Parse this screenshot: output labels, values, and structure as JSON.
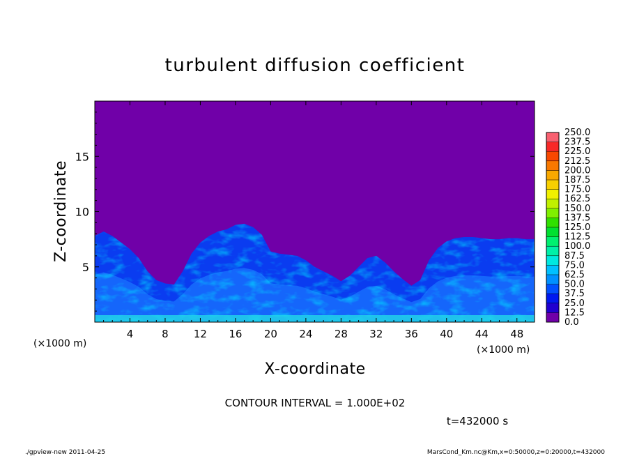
{
  "chart_data": {
    "type": "heatmap",
    "title": "turbulent diffusion coefficient",
    "xlabel": "X-coordinate",
    "ylabel": "Z-coordinate",
    "x_unit_label": "(×1000 m)",
    "y_unit_label": "(×1000 m)",
    "xlim": [
      0,
      50
    ],
    "ylim": [
      0,
      20
    ],
    "x_ticks": [
      {
        "value": 4,
        "label": "4"
      },
      {
        "value": 8,
        "label": "8"
      },
      {
        "value": 12,
        "label": "12"
      },
      {
        "value": 16,
        "label": "16"
      },
      {
        "value": 20,
        "label": "20"
      },
      {
        "value": 24,
        "label": "24"
      },
      {
        "value": 28,
        "label": "28"
      },
      {
        "value": 32,
        "label": "32"
      },
      {
        "value": 36,
        "label": "36"
      },
      {
        "value": 40,
        "label": "40"
      },
      {
        "value": 44,
        "label": "44"
      },
      {
        "value": 48,
        "label": "48"
      }
    ],
    "y_ticks": [
      {
        "value": 5,
        "label": "5"
      },
      {
        "value": 10,
        "label": "10"
      },
      {
        "value": 15,
        "label": "15"
      }
    ],
    "colorbar": {
      "levels": [
        "0.0",
        "12.5",
        "25.0",
        "37.5",
        "50.0",
        "62.5",
        "75.0",
        "87.5",
        "100.0",
        "112.5",
        "125.0",
        "137.5",
        "150.0",
        "162.5",
        "175.0",
        "187.5",
        "200.0",
        "212.5",
        "225.0",
        "237.5",
        "250.0"
      ],
      "colors": [
        "#7000a8",
        "#2000d0",
        "#0018f0",
        "#0050ff",
        "#0090ff",
        "#00c0ff",
        "#00e8e0",
        "#00f0a8",
        "#00f070",
        "#00e030",
        "#30e000",
        "#80f000",
        "#c0f000",
        "#f0f000",
        "#f8d000",
        "#f8a800",
        "#f87800",
        "#f84800",
        "#f82828",
        "#f86070"
      ]
    },
    "field_profile": {
      "x": [
        0,
        1,
        2,
        3,
        4,
        5,
        6,
        7,
        8,
        9,
        10,
        11,
        12,
        13,
        14,
        15,
        16,
        17,
        18,
        19,
        20,
        21,
        22,
        23,
        24,
        25,
        26,
        27,
        28,
        29,
        30,
        31,
        32,
        33,
        34,
        35,
        36,
        37,
        38,
        39,
        40,
        41,
        42,
        43,
        44,
        45,
        46,
        47,
        48,
        49,
        50
      ],
      "turbulent_layer_top": [
        7.8,
        8.2,
        7.8,
        7.2,
        6.6,
        5.8,
        4.6,
        3.8,
        3.5,
        3.4,
        4.6,
        6.2,
        7.2,
        7.8,
        8.2,
        8.4,
        8.8,
        8.9,
        8.6,
        7.9,
        6.4,
        6.2,
        6.1,
        6.0,
        5.6,
        5.0,
        4.6,
        4.2,
        3.7,
        4.2,
        5.0,
        5.8,
        6.0,
        5.4,
        4.6,
        3.9,
        3.3,
        3.8,
        5.6,
        6.7,
        7.3,
        7.6,
        7.7,
        7.7,
        7.6,
        7.5,
        7.5,
        7.6,
        7.6,
        7.5,
        7.5
      ],
      "background_value": 0.0,
      "layer_value": 50.0
    },
    "annotations": {
      "contour_interval": "CONTOUR INTERVAL = 1.000E+02",
      "time": "t=432000 s"
    }
  },
  "footer": {
    "left": "./gpview-new   2011-04-25",
    "right": "MarsCond_Km.nc@Km,x=0:50000,z=0:20000,t=432000"
  }
}
